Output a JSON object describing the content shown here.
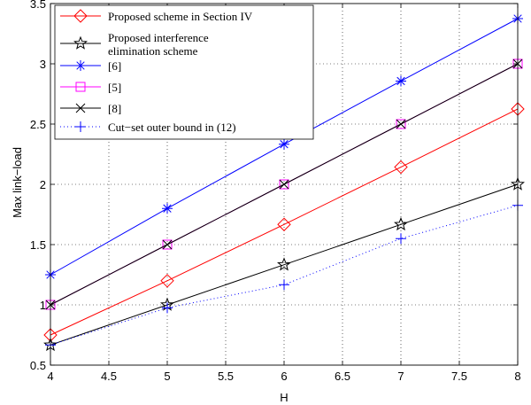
{
  "chart_data": {
    "type": "line",
    "xlabel": "H",
    "ylabel": "Max link−load",
    "xlim": [
      4,
      8
    ],
    "ylim": [
      0.5,
      3.5
    ],
    "xticks": [
      "4",
      "4.5",
      "5",
      "5.5",
      "6",
      "6.5",
      "7",
      "7.5",
      "8"
    ],
    "yticks": [
      "0.5",
      "1",
      "1.5",
      "2",
      "2.5",
      "3",
      "3.5"
    ],
    "grid": true,
    "legend_position": "top-left",
    "series": [
      {
        "name": "Proposed scheme in Section IV",
        "color": "#ff0000",
        "marker": "diamond",
        "line": "solid",
        "x": [
          4,
          5,
          6,
          7,
          8
        ],
        "y": [
          0.75,
          1.2,
          1.667,
          2.143,
          2.625
        ]
      },
      {
        "name": "Proposed interference elimination scheme",
        "color": "#000000",
        "marker": "star",
        "line": "solid",
        "x": [
          4,
          5,
          6,
          7,
          8
        ],
        "y": [
          0.667,
          1.0,
          1.333,
          1.667,
          2.0
        ]
      },
      {
        "name": "[6]",
        "color": "#0000ff",
        "marker": "asterisk",
        "line": "solid",
        "x": [
          4,
          5,
          6,
          7,
          8
        ],
        "y": [
          1.25,
          1.8,
          2.333,
          2.857,
          3.375
        ]
      },
      {
        "name": "[5]",
        "color": "#ff00ff",
        "marker": "square",
        "line": "solid",
        "x": [
          4,
          5,
          6,
          7,
          8
        ],
        "y": [
          1.0,
          1.5,
          2.0,
          2.5,
          3.0
        ]
      },
      {
        "name": "[8]",
        "color": "#000000",
        "marker": "x",
        "line": "solid",
        "x": [
          4,
          5,
          6,
          7,
          8
        ],
        "y": [
          1.0,
          1.5,
          2.0,
          2.5,
          3.0
        ]
      },
      {
        "name": "Cut−set outer bound in (12)",
        "color": "#0000ff",
        "marker": "plus",
        "line": "dotted",
        "x": [
          4,
          5,
          6,
          7,
          8
        ],
        "y": [
          0.667,
          0.975,
          1.167,
          1.55,
          1.825
        ]
      }
    ]
  }
}
